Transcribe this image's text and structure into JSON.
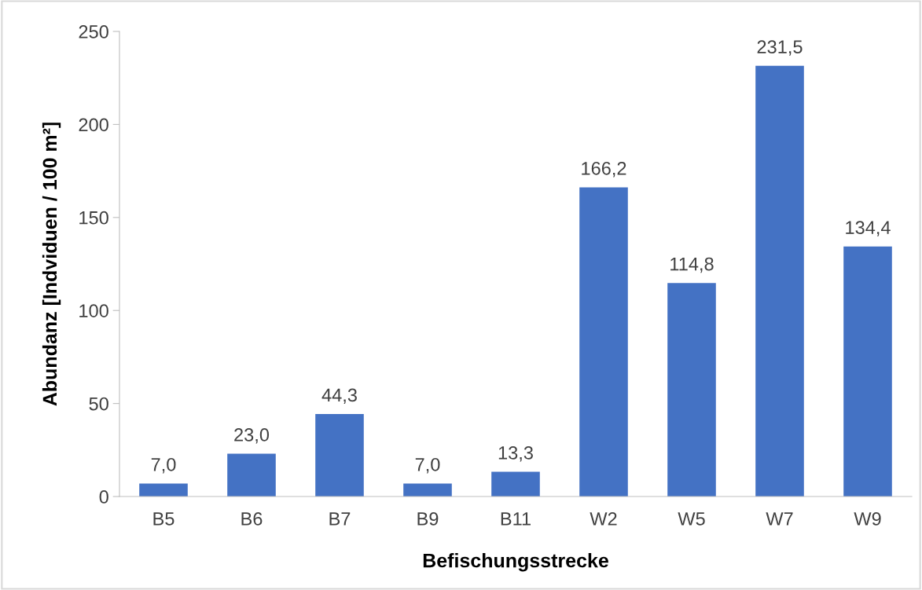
{
  "chart_data": {
    "type": "bar",
    "xlabel": "Befischungsstrecke",
    "ylabel": "Abundanz [Indviduen / 100 m²]",
    "categories": [
      "B5",
      "B6",
      "B7",
      "B9",
      "B11",
      "W2",
      "W5",
      "W7",
      "W9"
    ],
    "values": [
      7.0,
      23.0,
      44.3,
      7.0,
      13.3,
      166.2,
      114.8,
      231.5,
      134.4
    ],
    "value_labels": [
      "7,0",
      "23,0",
      "44,3",
      "7,0",
      "13,3",
      "166,2",
      "114,8",
      "231,5",
      "134,4"
    ],
    "color": "#4472c4",
    "ylim": [
      0,
      250
    ],
    "yticks": [
      0,
      50,
      100,
      150,
      200,
      250
    ],
    "grid": false
  }
}
